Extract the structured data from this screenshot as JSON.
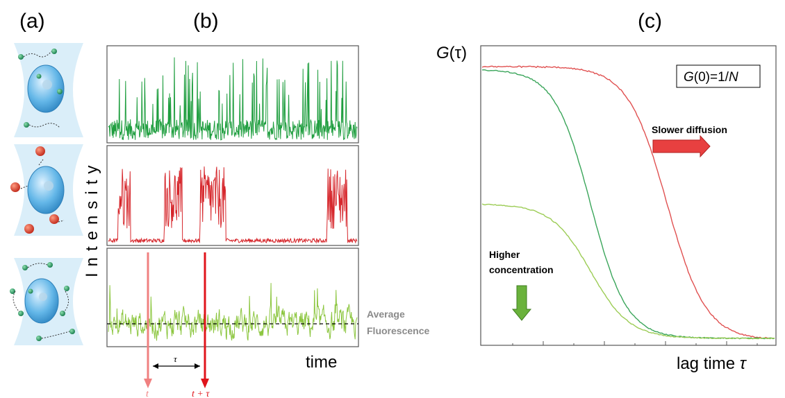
{
  "labels": {
    "panel_a": "(a)",
    "panel_b": "(b)",
    "panel_c": "(c)",
    "intensity": "Intensity",
    "time": "time",
    "tau": "τ",
    "t": "t",
    "t_plus_tau": "t + τ",
    "avg_line1": "Average",
    "avg_line2": "Fluorescence",
    "g_axis_G": "G",
    "g_axis_rest": "(τ)",
    "lag_time": "lag time ",
    "lag_tau": "τ",
    "g0_G": "G",
    "g0_mid": "(0)=1/",
    "g0_N": "N",
    "slower_diffusion": "Slower diffusion",
    "higher_conc_line1": "Higher",
    "higher_conc_line2": "concentration"
  },
  "colors": {
    "green_trace": "#1f9e3f",
    "red_trace": "#d6262b",
    "lightgreen_trace": "#8cc63f",
    "t_arrow": "#f08080",
    "tau_arrow": "#e0141b",
    "curve_red": "#e05050",
    "curve_green": "#3aa55a",
    "curve_lightgreen": "#9ccc55",
    "slower_arrow": "#e84040",
    "conc_arrow": "#6ab23c",
    "focal_volume": "#cfe6f5",
    "cell": "#5aaee0"
  }
}
